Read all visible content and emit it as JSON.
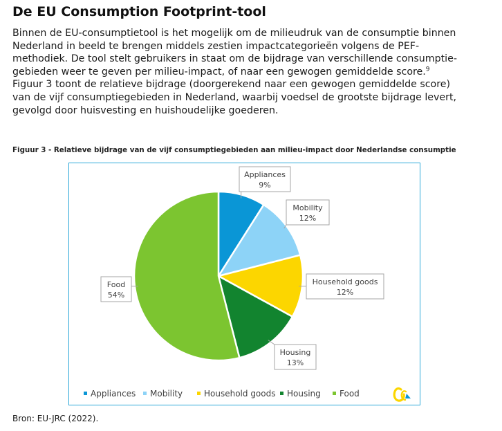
{
  "document": {
    "heading": "De EU Consumption Footprint-tool",
    "paragraph_lines": [
      "Binnen de EU-consumptietool is het mogelijk om de milieudruk van de consumptie binnen",
      "Nederland in beeld te brengen middels zestien impactcategorieën volgens de PEF-",
      "methodiek. De tool stelt gebruikers in staat om de bijdrage van verschillende consumptie-",
      "gebieden weer te geven per milieu-impact, of naar een gewogen gemiddelde score.",
      "Figuur 3 toont de relatieve bijdrage (doorgerekend naar een gewogen gemiddelde score)",
      "van de vijf consumptiegebieden in Nederland, waarbij voedsel de grootste bijdrage levert,",
      "gevolgd door huisvesting en huishoudelijke goederen."
    ],
    "footnote_marker": "9",
    "figure_caption": "Figuur 3 - Relatieve bijdrage van de vijf consumptiegebieden aan milieu-impact door Nederlandse consumptie",
    "source": "Bron: EU-JRC (2022)."
  },
  "chart_data": {
    "type": "pie",
    "title": "",
    "slices": [
      {
        "name": "Appliances",
        "value": 9,
        "label": "9%",
        "color": "#0a96d6"
      },
      {
        "name": "Mobility",
        "value": 12,
        "label": "12%",
        "color": "#8dd3f7"
      },
      {
        "name": "Household goods",
        "value": 12,
        "label": "12%",
        "color": "#fcd600"
      },
      {
        "name": "Housing",
        "value": 13,
        "label": "13%",
        "color": "#12842f"
      },
      {
        "name": "Food",
        "value": 54,
        "label": "54%",
        "color": "#7cc530"
      }
    ],
    "legend_position": "bottom",
    "logo_colors": [
      "#fcd600",
      "#0a96d6"
    ]
  }
}
